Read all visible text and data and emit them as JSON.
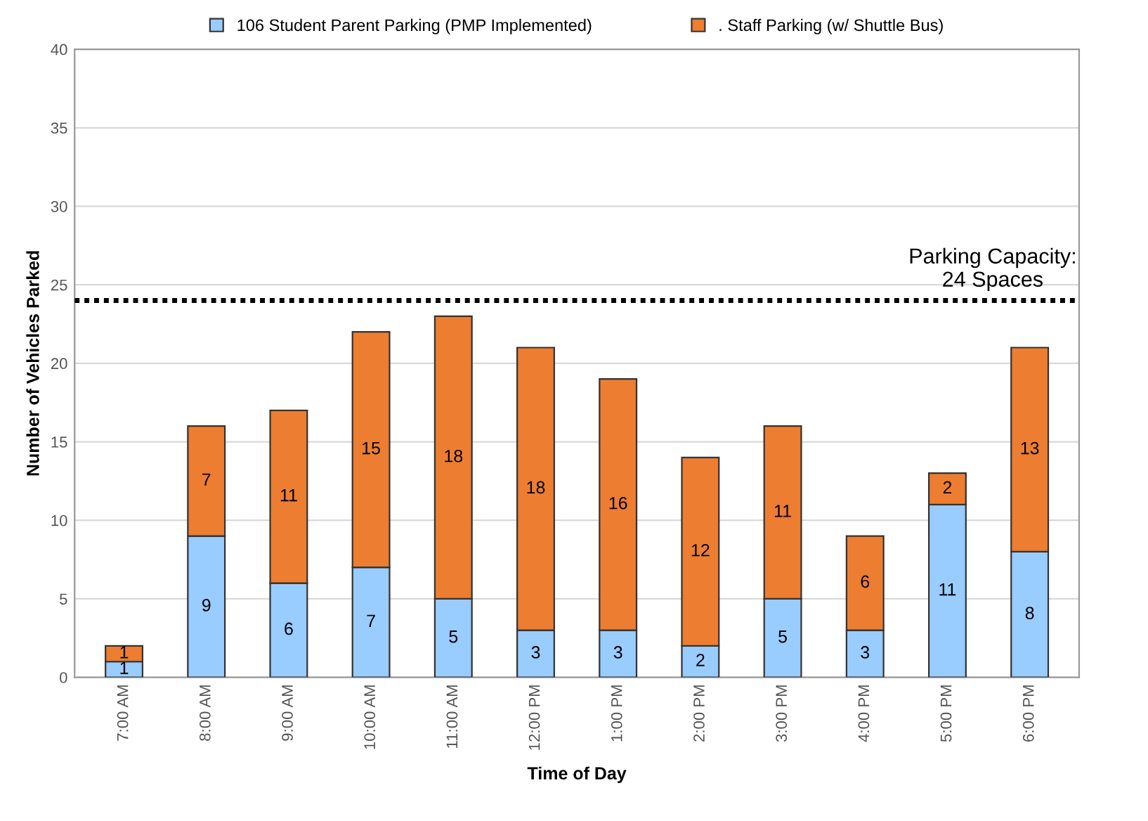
{
  "chart_data": {
    "type": "bar",
    "stacked": true,
    "xlabel": "Time of Day",
    "ylabel": "Number of Vehicles Parked",
    "categories": [
      "7:00 AM",
      "8:00 AM",
      "9:00 AM",
      "10:00 AM",
      "11:00 AM",
      "12:00 PM",
      "1:00 PM",
      "2:00 PM",
      "3:00 PM",
      "4:00 PM",
      "5:00 PM",
      "6:00 PM"
    ],
    "series": [
      {
        "name": "106 Student Parent Parking (PMP Implemented)",
        "color": "#99ccff",
        "values": [
          1,
          9,
          6,
          7,
          5,
          3,
          3,
          2,
          5,
          3,
          11,
          8
        ]
      },
      {
        "name": ". Staff Parking (w/ Shuttle Bus)",
        "color": "#ed7d31",
        "values": [
          1,
          7,
          11,
          15,
          18,
          18,
          16,
          12,
          11,
          6,
          2,
          13
        ]
      }
    ],
    "ylim": [
      0,
      40
    ],
    "yticks": [
      0,
      5,
      10,
      15,
      20,
      25,
      30,
      35,
      40
    ],
    "grid": "y",
    "legend": "top",
    "data_labels": true,
    "ref_lines": [
      {
        "axis": "y",
        "value": 24,
        "label": "Parking Capacity:\n24 Spaces",
        "color": "#000000",
        "line_style": "dotted"
      }
    ]
  }
}
